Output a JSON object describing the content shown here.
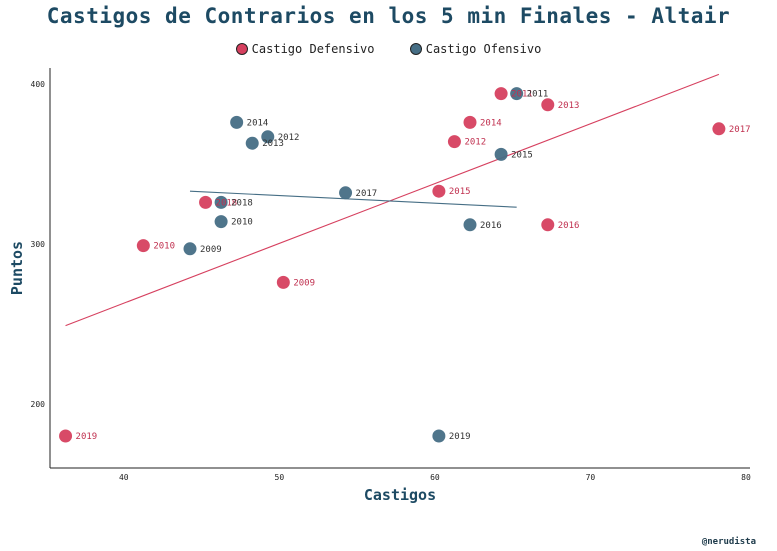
{
  "title": "Castigos de Contrarios en los 5 min Finales - Altair",
  "credit": "@nerudista",
  "legend": [
    {
      "name": "Castigo Defensivo",
      "color": "#d6405f"
    },
    {
      "name": "Castigo Ofensivo",
      "color": "#466e85"
    }
  ],
  "chart_data": {
    "type": "scatter",
    "title": "Castigos de Contrarios en los 5 min Finales - Altair",
    "xlabel": "Castigos",
    "ylabel": "Puntos",
    "xlim": [
      35,
      80
    ],
    "ylim": [
      160,
      410
    ],
    "xticks": [
      "40",
      "50",
      "60",
      "70",
      "80"
    ],
    "yticks": [
      "200",
      "300",
      "400"
    ],
    "legend_position": "top",
    "grid": false,
    "series": [
      {
        "name": "Castigo Defensivo",
        "color": "#d6405f",
        "trendline": [
          [
            36,
            249
          ],
          [
            78,
            406
          ]
        ],
        "points": [
          {
            "x": 36,
            "y": 180,
            "label": "2019"
          },
          {
            "x": 41,
            "y": 299,
            "label": "2010"
          },
          {
            "x": 45,
            "y": 326,
            "label": "2018"
          },
          {
            "x": 50,
            "y": 276,
            "label": "2009"
          },
          {
            "x": 60,
            "y": 333,
            "label": "2015"
          },
          {
            "x": 61,
            "y": 364,
            "label": "2012"
          },
          {
            "x": 62,
            "y": 376,
            "label": "2014"
          },
          {
            "x": 64,
            "y": 394,
            "label": "2011"
          },
          {
            "x": 67,
            "y": 387,
            "label": "2013"
          },
          {
            "x": 67,
            "y": 312,
            "label": "2016"
          },
          {
            "x": 78,
            "y": 372,
            "label": "2017"
          }
        ]
      },
      {
        "name": "Castigo Ofensivo",
        "color": "#466e85",
        "trendline": [
          [
            44,
            333
          ],
          [
            65,
            323
          ]
        ],
        "points": [
          {
            "x": 44,
            "y": 297,
            "label": "2009"
          },
          {
            "x": 46,
            "y": 314,
            "label": "2010"
          },
          {
            "x": 46,
            "y": 326,
            "label": "2018"
          },
          {
            "x": 47,
            "y": 376,
            "label": "2014"
          },
          {
            "x": 48,
            "y": 363,
            "label": "2013"
          },
          {
            "x": 49,
            "y": 367,
            "label": "2012"
          },
          {
            "x": 54,
            "y": 332,
            "label": "2017"
          },
          {
            "x": 60,
            "y": 180,
            "label": "2019"
          },
          {
            "x": 62,
            "y": 312,
            "label": "2016"
          },
          {
            "x": 64,
            "y": 356,
            "label": "2015"
          },
          {
            "x": 65,
            "y": 394,
            "label": "2011"
          }
        ]
      }
    ]
  }
}
